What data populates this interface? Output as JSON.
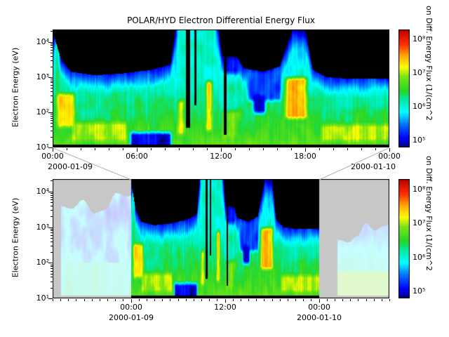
{
  "chart_data": {
    "type": "heatmap",
    "title": "POLAR/HYD  Electron Differential Energy Flux",
    "ylabel": "Electron Energy (eV)",
    "colorbar": {
      "label": "on Diff. Energy Flux (1/(cm^2",
      "tick_labels": [
        "10⁸",
        "10⁷",
        "10⁶",
        "10⁵"
      ],
      "tick_log10": [
        8,
        7,
        6,
        5
      ],
      "flux_log10_range": [
        4.8,
        8.3
      ]
    },
    "colormap_stops": [
      [
        0.0,
        [
          0,
          0,
          120
        ]
      ],
      [
        0.08,
        [
          0,
          0,
          255
        ]
      ],
      [
        0.2,
        [
          0,
          120,
          255
        ]
      ],
      [
        0.3,
        [
          0,
          255,
          255
        ]
      ],
      [
        0.4,
        [
          0,
          235,
          170
        ]
      ],
      [
        0.48,
        [
          40,
          215,
          40
        ]
      ],
      [
        0.6,
        [
          120,
          230,
          20
        ]
      ],
      [
        0.68,
        [
          255,
          255,
          0
        ]
      ],
      [
        0.78,
        [
          255,
          165,
          0
        ]
      ],
      [
        0.87,
        [
          255,
          50,
          0
        ]
      ],
      [
        1.0,
        [
          185,
          0,
          0
        ]
      ]
    ],
    "panels": [
      {
        "id": "main",
        "x_hours_range": [
          0,
          24
        ],
        "y_log10ev_range": [
          1,
          4.35
        ],
        "ytick_labels": [
          "10⁴",
          "10³",
          "10²",
          "10¹"
        ],
        "ytick_log10": [
          4,
          3,
          2,
          1
        ],
        "xtick_labels": [
          "00:00",
          "06:00",
          "12:00",
          "18:00",
          "00:00"
        ],
        "xtick_hours": [
          0,
          6,
          12,
          18,
          24
        ],
        "date_labels": [
          "2000-01-09",
          "2000-01-10"
        ],
        "model": {
          "base": {
            "f0": 6.62,
            "slope": 0.36,
            "y_ref": 1.3,
            "edge_w": 0.55,
            "edge_k": 1.5,
            "y_floor": 1.08
          },
          "top_profile": [
            [
              0,
              4.3
            ],
            [
              0.6,
              3.5
            ],
            [
              1.3,
              3.15
            ],
            [
              3,
              3.05
            ],
            [
              5,
              3.1
            ],
            [
              7,
              3.2
            ],
            [
              8.4,
              3.35
            ],
            [
              8.75,
              4.35
            ],
            [
              11.85,
              4.35
            ],
            [
              12.1,
              3.6
            ],
            [
              13.2,
              3.55
            ],
            [
              13.6,
              3.25
            ],
            [
              15,
              3.15
            ],
            [
              16.2,
              3.3
            ],
            [
              16.7,
              3.9
            ],
            [
              17.1,
              4.35
            ],
            [
              18.0,
              4.35
            ],
            [
              18.55,
              3.2
            ],
            [
              19.5,
              3.0
            ],
            [
              21,
              2.95
            ],
            [
              24,
              2.95
            ]
          ],
          "gaps": [
            [
              9.5,
              9.78,
              1.55
            ],
            [
              10.1,
              10.26,
              2.2
            ],
            [
              12.18,
              12.38,
              1.35
            ]
          ],
          "boosts": [
            [
              0.05,
              0.6,
              1.3,
              4.3,
              6.35
            ],
            [
              0.2,
              1.7,
              1.5,
              2.6,
              7.3
            ],
            [
              1.2,
              5.4,
              1.1,
              1.78,
              7.0
            ],
            [
              8.75,
              11.85,
              2.4,
              4.35,
              6.05
            ],
            [
              8.8,
              9.5,
              1.3,
              2.4,
              7.15
            ],
            [
              10.8,
              11.5,
              1.4,
              2.95,
              7.35
            ],
            [
              11.9,
              13.3,
              1.2,
              2.1,
              6.9
            ],
            [
              16.45,
              18.25,
              1.75,
              3.05,
              7.45
            ],
            [
              19.0,
              24.0,
              1.1,
              1.72,
              7.05
            ]
          ],
          "holes": [
            [
              5.4,
              8.6,
              1.0,
              1.5,
              5.0
            ],
            [
              12.1,
              13.45,
              3.05,
              3.8,
              5.2
            ],
            [
              13.75,
              16.4,
              2.25,
              3.2,
              5.3
            ],
            [
              14.2,
              15.3,
              1.9,
              2.55,
              4.95
            ]
          ]
        }
      },
      {
        "id": "context",
        "x_hours_range": [
          -10,
          33
        ],
        "highlight_hours": [
          0,
          24
        ],
        "y_log10ev_range": [
          1,
          4.35
        ],
        "ytick_labels": [
          "10⁴",
          "10³",
          "10²",
          "10¹"
        ],
        "ytick_log10": [
          4,
          3,
          2,
          1
        ],
        "xtick_labels": [
          "00:00",
          "12:00",
          "00:00"
        ],
        "xtick_hours": [
          0,
          12,
          24
        ],
        "date_labels": [
          "2000-01-09",
          "2000-01-10"
        ],
        "fade_white": 0.78,
        "model": {
          "left": {
            "nodata_before": -8.9,
            "top_base": 3.5,
            "top_amp": 0.9,
            "flux_base": 5.1
          },
          "right": {
            "nodata_until": 26.4,
            "top_base": 2.5,
            "top_amp": 0.9,
            "flux_base": 6.3,
            "bottom_strip_flux": 6.85
          }
        }
      }
    ]
  }
}
